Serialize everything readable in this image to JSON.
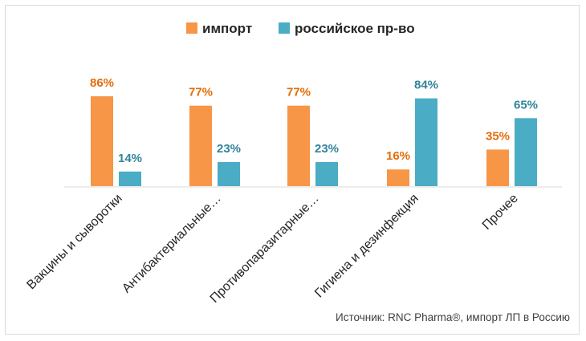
{
  "chart_data": {
    "type": "bar",
    "categories": [
      "Вакцины и сыворотки",
      "Антибактериальные…",
      "Противопаразитарные…",
      "Гигиена и дезинфекция",
      "Прочее"
    ],
    "series": [
      {
        "name": "импорт",
        "values": [
          86,
          77,
          77,
          16,
          35
        ],
        "labels": [
          "86%",
          "77%",
          "77%",
          "16%",
          "35%"
        ]
      },
      {
        "name": "российское пр-во",
        "values": [
          14,
          23,
          23,
          84,
          65
        ],
        "labels": [
          "14%",
          "23%",
          "23%",
          "84%",
          "65%"
        ]
      }
    ],
    "ylim": [
      0,
      100
    ],
    "grid": false,
    "legend_position": "top-center",
    "colors": {
      "import": "#F79646",
      "domestic": "#4BACC6",
      "import_label": "#E36C0A",
      "domestic_label": "#31849B"
    },
    "source": "Источник: RNC Pharma®, импорт ЛП в Россию"
  }
}
